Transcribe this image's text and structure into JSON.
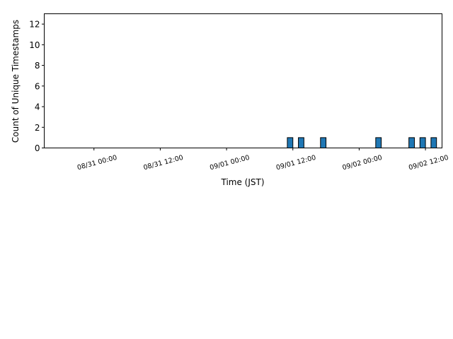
{
  "chart_data": {
    "type": "bar",
    "title": "",
    "xlabel": "Time (JST)",
    "ylabel": "Count of Unique Timestamps",
    "ylim": [
      0,
      13
    ],
    "yticks": [
      0,
      2,
      4,
      6,
      8,
      10,
      12
    ],
    "xlim": [
      "08/30 15:00",
      "09/02 15:00"
    ],
    "xticks": [
      {
        "value": "08/31 00:00",
        "label": "08/31 00:00"
      },
      {
        "value": "08/31 12:00",
        "label": "08/31 12:00"
      },
      {
        "value": "09/01 00:00",
        "label": "09/01 00:00"
      },
      {
        "value": "09/01 12:00",
        "label": "09/01 12:00"
      },
      {
        "value": "09/02 00:00",
        "label": "09/02 00:00"
      },
      {
        "value": "09/02 12:00",
        "label": "09/02 12:00"
      }
    ],
    "bar_width_hours": 1,
    "bars": [
      {
        "x": "09/01 11:30",
        "value": 1
      },
      {
        "x": "09/01 13:30",
        "value": 1
      },
      {
        "x": "09/01 17:30",
        "value": 1
      },
      {
        "x": "09/02 03:30",
        "value": 1
      },
      {
        "x": "09/02 09:30",
        "value": 1
      },
      {
        "x": "09/02 11:30",
        "value": 1
      },
      {
        "x": "09/02 13:30",
        "value": 1
      }
    ],
    "grid": false,
    "legend": "none",
    "colors": {
      "bar_fill": "#1f77b4",
      "bar_edge": "#000000",
      "axis": "#000000"
    }
  }
}
